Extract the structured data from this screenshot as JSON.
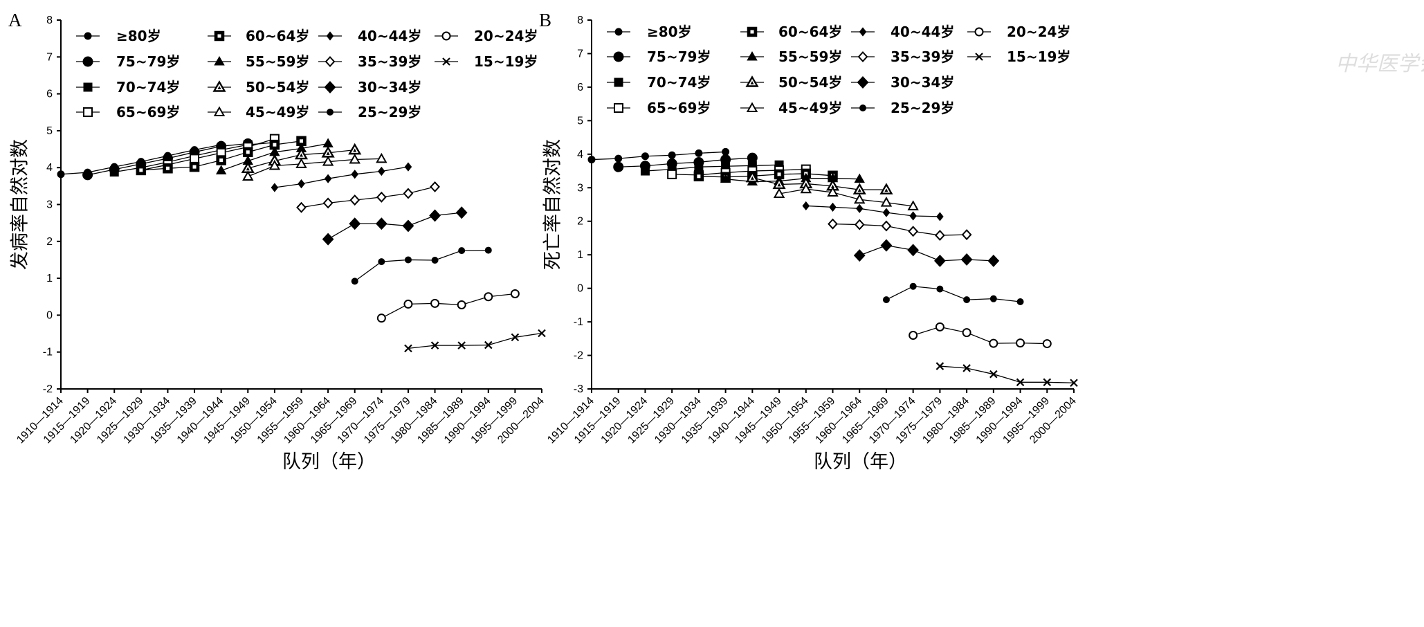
{
  "watermark": "中华医学会",
  "x_categories": [
    "1910—1914",
    "1915—1919",
    "1920—1924",
    "1925—1929",
    "1930—1934",
    "1935—1939",
    "1940—1944",
    "1945—1949",
    "1950—1954",
    "1955—1959",
    "1960—1964",
    "1965—1969",
    "1970—1974",
    "1975—1979",
    "1980—1984",
    "1985—1989",
    "1990—1994",
    "1995—1999",
    "2000—2004"
  ],
  "chart_data": [
    {
      "type": "line",
      "panel_label": "A",
      "xlabel": "队列（年）",
      "ylabel": "发病率自然对数",
      "ylim": [
        -2,
        8
      ],
      "yticks": [
        -2,
        -1,
        0,
        1,
        2,
        3,
        4,
        5,
        6,
        7,
        8
      ],
      "legend_position": "top",
      "series": [
        {
          "name": "≥80岁",
          "marker": "circle-small",
          "start": 0,
          "values": [
            3.82,
            3.87,
            4.02,
            4.16,
            4.32,
            4.48,
            4.62
          ]
        },
        {
          "name": "75~79岁",
          "marker": "circle-large",
          "start": 1,
          "values": [
            3.8,
            3.95,
            4.1,
            4.25,
            4.42,
            4.58,
            4.65
          ]
        },
        {
          "name": "70~74岁",
          "marker": "square",
          "start": 2,
          "values": [
            3.88,
            4.0,
            4.15,
            4.32,
            4.48,
            4.62,
            4.68
          ]
        },
        {
          "name": "65~69岁",
          "marker": "square-open",
          "start": 3,
          "values": [
            3.93,
            4.08,
            4.24,
            4.4,
            4.56,
            4.78
          ]
        },
        {
          "name": "60~64岁",
          "marker": "square-dot",
          "start": 3,
          "values": [
            3.93,
            3.98,
            4.02,
            4.2,
            4.42,
            4.62,
            4.72
          ]
        },
        {
          "name": "55~59岁",
          "marker": "triangle",
          "start": 6,
          "values": [
            3.92,
            4.18,
            4.42,
            4.52,
            4.65
          ]
        },
        {
          "name": "50~54岁",
          "marker": "triangle-dot",
          "start": 7,
          "values": [
            3.98,
            4.18,
            4.35,
            4.4,
            4.48
          ]
        },
        {
          "name": "45~49岁",
          "marker": "triangle-open",
          "start": 7,
          "values": [
            3.76,
            4.05,
            4.1,
            4.16,
            4.22,
            4.24
          ]
        },
        {
          "name": "40~44岁",
          "marker": "diamond-small",
          "start": 8,
          "values": [
            3.46,
            3.56,
            3.7,
            3.82,
            3.9,
            4.02
          ]
        },
        {
          "name": "35~39岁",
          "marker": "diamond-open",
          "start": 9,
          "values": [
            2.92,
            3.04,
            3.12,
            3.2,
            3.3,
            3.48
          ]
        },
        {
          "name": "30~34岁",
          "marker": "diamond",
          "start": 10,
          "values": [
            2.06,
            2.48,
            2.48,
            2.42,
            2.7,
            2.78
          ]
        },
        {
          "name": "25~29岁",
          "marker": "dot",
          "start": 11,
          "values": [
            0.92,
            1.45,
            1.5,
            1.49,
            1.75,
            1.76
          ]
        },
        {
          "name": "20~24岁",
          "marker": "hex-open",
          "start": 12,
          "values": [
            -0.08,
            0.3,
            0.32,
            0.28,
            0.5,
            0.58
          ]
        },
        {
          "name": "15~19岁",
          "marker": "x",
          "start": 13,
          "values": [
            -0.9,
            -0.82,
            -0.82,
            -0.81,
            -0.6,
            -0.49
          ]
        }
      ]
    },
    {
      "type": "line",
      "panel_label": "B",
      "xlabel": "队列（年）",
      "ylabel": "死亡率自然对数",
      "ylim": [
        -3,
        8
      ],
      "yticks": [
        -3,
        -2,
        -1,
        0,
        1,
        2,
        3,
        4,
        5,
        6,
        7,
        8
      ],
      "legend_position": "top",
      "series": [
        {
          "name": "≥80岁",
          "marker": "circle-small",
          "start": 0,
          "values": [
            3.84,
            3.87,
            3.94,
            3.97,
            4.03,
            4.07
          ]
        },
        {
          "name": "75~79岁",
          "marker": "circle-large",
          "start": 1,
          "values": [
            3.62,
            3.65,
            3.72,
            3.76,
            3.84,
            3.89
          ]
        },
        {
          "name": "70~74岁",
          "marker": "square",
          "start": 2,
          "values": [
            3.5,
            3.55,
            3.62,
            3.64,
            3.66,
            3.68
          ]
        },
        {
          "name": "65~69岁",
          "marker": "square-open",
          "start": 3,
          "values": [
            3.4,
            3.38,
            3.45,
            3.5,
            3.52,
            3.55
          ]
        },
        {
          "name": "60~64岁",
          "marker": "square-dot",
          "start": 4,
          "values": [
            3.34,
            3.32,
            3.35,
            3.4,
            3.42,
            3.36
          ]
        },
        {
          "name": "55~59岁",
          "marker": "triangle",
          "start": 5,
          "values": [
            3.26,
            3.18,
            3.2,
            3.28,
            3.28,
            3.26
          ]
        },
        {
          "name": "50~54岁",
          "marker": "triangle-dot",
          "start": 6,
          "values": [
            3.3,
            3.1,
            3.12,
            3.05,
            2.94,
            2.94
          ]
        },
        {
          "name": "45~49岁",
          "marker": "triangle-open",
          "start": 7,
          "values": [
            2.82,
            2.96,
            2.86,
            2.65,
            2.56,
            2.45
          ]
        },
        {
          "name": "40~44岁",
          "marker": "diamond-small",
          "start": 8,
          "values": [
            2.46,
            2.42,
            2.38,
            2.26,
            2.16,
            2.14
          ]
        },
        {
          "name": "35~39岁",
          "marker": "diamond-open",
          "start": 9,
          "values": [
            1.92,
            1.9,
            1.86,
            1.7,
            1.58,
            1.6
          ]
        },
        {
          "name": "30~34岁",
          "marker": "diamond",
          "start": 10,
          "values": [
            0.98,
            1.28,
            1.14,
            0.82,
            0.86,
            0.82
          ]
        },
        {
          "name": "25~29岁",
          "marker": "dot",
          "start": 11,
          "values": [
            -0.34,
            0.06,
            -0.02,
            -0.34,
            -0.31,
            -0.4
          ]
        },
        {
          "name": "20~24岁",
          "marker": "hex-open",
          "start": 12,
          "values": [
            -1.4,
            -1.15,
            -1.32,
            -1.64,
            -1.63,
            -1.65
          ]
        },
        {
          "name": "15~19岁",
          "marker": "x",
          "start": 13,
          "values": [
            -2.32,
            -2.38,
            -2.56,
            -2.8,
            -2.8,
            -2.82
          ]
        }
      ]
    }
  ]
}
